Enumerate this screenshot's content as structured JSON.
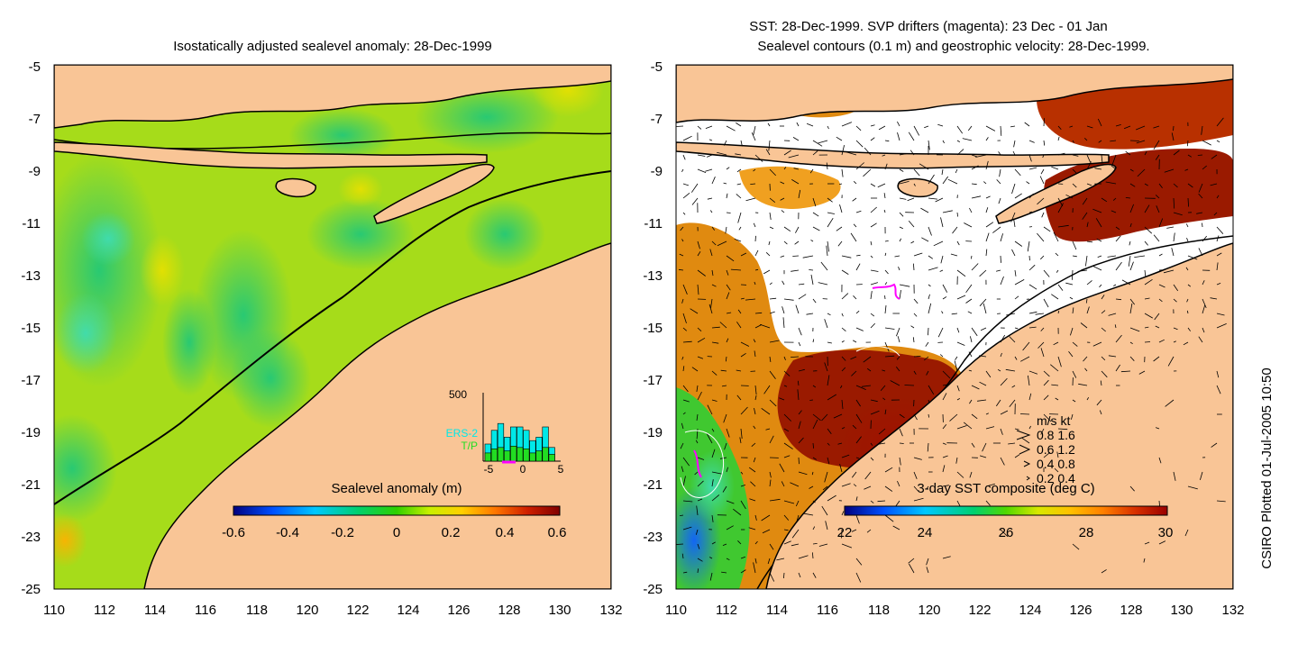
{
  "left_panel": {
    "title": "Isostatically adjusted sealevel anomaly: 28-Dec-1999",
    "colorbar_label": "Sealevel anomaly (m)",
    "colorbar_ticks": [
      "-0.6",
      "-0.4",
      "-0.2",
      "0",
      "0.2",
      "0.4",
      "0.6"
    ],
    "colorbar_colors": [
      "#00007f",
      "#0050ff",
      "#00c8ff",
      "#00d070",
      "#2fd000",
      "#c8f000",
      "#ffd000",
      "#ff7800",
      "#d02000",
      "#800000"
    ],
    "histogram": {
      "ymax_label": "500",
      "xticks": [
        "-5",
        "0",
        "5"
      ],
      "legend": [
        {
          "label": "ERS-2",
          "color": "#00e8e8"
        },
        {
          "label": "T/P",
          "color": "#22dd22"
        }
      ],
      "bar_levels": [
        0.25,
        0.45,
        0.55,
        0.35,
        0.5,
        0.5,
        0.45,
        0.3,
        0.35,
        0.5,
        0.2
      ],
      "tp_levels": [
        0.12,
        0.18,
        0.2,
        0.15,
        0.22,
        0.2,
        0.18,
        0.12,
        0.15,
        0.2,
        0.1
      ]
    }
  },
  "right_panel": {
    "title_line1": "SST: 28-Dec-1999. SVP drifters (magenta): 23 Dec - 01 Jan",
    "title_line2": "Sealevel contours (0.1 m) and geostrophic velocity: 28-Dec-1999.",
    "colorbar_label": "3-day SST composite (deg C)",
    "colorbar_ticks": [
      "22",
      "24",
      "26",
      "28",
      "30"
    ],
    "colorbar_colors": [
      "#00007f",
      "#0050ff",
      "#00c8ff",
      "#00d070",
      "#50d800",
      "#d8e800",
      "#ffc000",
      "#ff8000",
      "#d83000",
      "#9a0000"
    ],
    "velocity_legend": {
      "header": "m/s  kt",
      "rows": [
        "0.8  1.6",
        "0.6  1.2",
        "0.4  0.8",
        "0.2  0.4"
      ]
    }
  },
  "axes": {
    "x_ticks": [
      "110",
      "112",
      "114",
      "116",
      "118",
      "120",
      "122",
      "124",
      "126",
      "128",
      "130",
      "132"
    ],
    "y_ticks": [
      "-5",
      "-7",
      "-9",
      "-11",
      "-13",
      "-15",
      "-17",
      "-19",
      "-21",
      "-23",
      "-25"
    ]
  },
  "colors": {
    "land": "#f9c596",
    "ocean_left": "#9edc20",
    "ocean_right_fill": "#ffffff"
  },
  "side_text": "CSIRO Plotted 01-Jul-2005 10:50"
}
